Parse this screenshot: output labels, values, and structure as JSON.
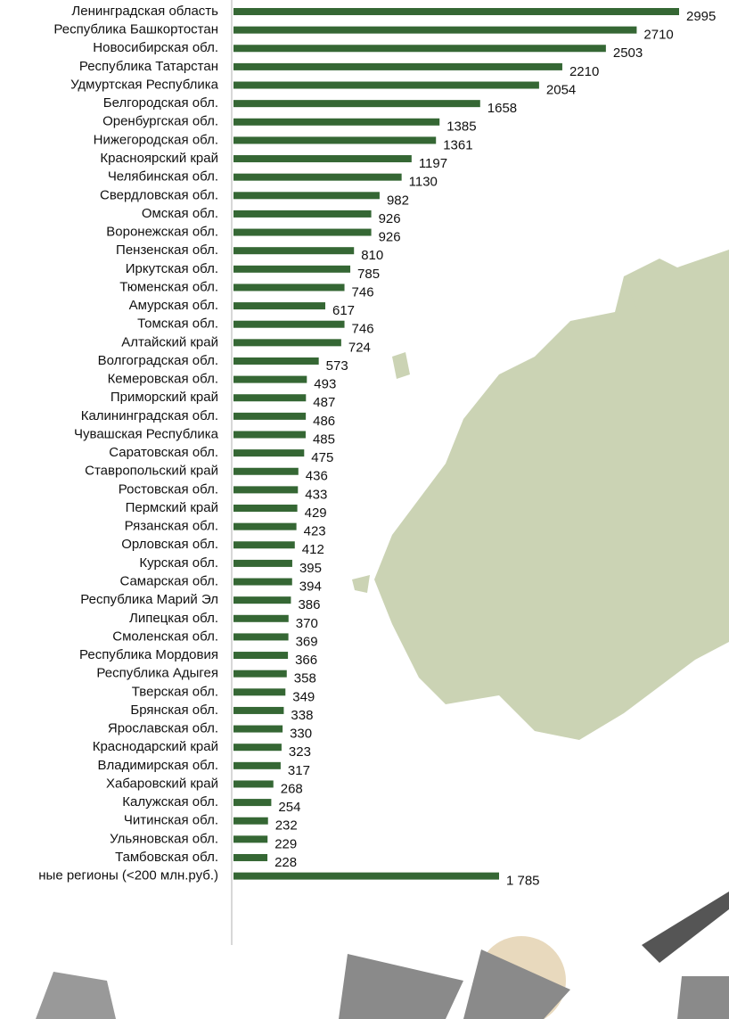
{
  "chart_data": {
    "type": "bar",
    "orientation": "horizontal",
    "color": "#356734",
    "categories": [
      "Ленинградская область",
      "Республика Башкортостан",
      "Новосибирская обл.",
      "Республика Татарстан",
      "Удмуртская Республика",
      "Белгородская обл.",
      "Оренбургская обл.",
      "Нижегородская обл.",
      "Красноярский край",
      "Челябинская обл.",
      "Свердловская обл.",
      "Омская обл.",
      "Воронежская обл.",
      "Пензенская обл.",
      "Иркутская обл.",
      "Тюменская обл.",
      "Амурская обл.",
      "Томская обл.",
      "Алтайский край",
      "Волгоградская обл.",
      "Кемеровская обл.",
      "Приморский край",
      "Калининградская обл.",
      "Чувашская Республика",
      "Саратовская обл.",
      "Ставропольский край",
      "Ростовская обл.",
      "Пермский край",
      "Рязанская обл.",
      "Орловская обл.",
      "Курская обл.",
      "Самарская обл.",
      "Республика Марий Эл",
      "Липецкая обл.",
      "Смоленская обл.",
      "Республика Мордовия",
      "Республика Адыгея",
      "Тверская обл.",
      "Брянская обл.",
      "Ярославская обл.",
      "Краснодарский край",
      "Владимирская обл.",
      "Хабаровский край",
      "Калужская обл.",
      "Читинская обл.",
      "Ульяновская обл.",
      "Тамбовская обл.",
      "ные регионы (<200 млн.руб.)"
    ],
    "values": [
      2995,
      2710,
      2503,
      2210,
      2054,
      1658,
      1385,
      1361,
      1197,
      1130,
      982,
      926,
      926,
      810,
      785,
      746,
      617,
      746,
      724,
      573,
      493,
      487,
      486,
      485,
      475,
      436,
      433,
      429,
      423,
      412,
      395,
      394,
      386,
      370,
      369,
      366,
      358,
      349,
      338,
      330,
      323,
      317,
      268,
      254,
      232,
      229,
      228,
      1785
    ],
    "value_labels": [
      "2995",
      "2710",
      "2503",
      "2210",
      "2054",
      "1658",
      "1385",
      "1361",
      "1197",
      "1130",
      "982",
      "926",
      "926",
      "810",
      "785",
      "746",
      "617",
      "746",
      "724",
      "573",
      "493",
      "487",
      "486",
      "485",
      "475",
      "436",
      "433",
      "429",
      "423",
      "412",
      "395",
      "394",
      "386",
      "370",
      "369",
      "366",
      "358",
      "349",
      "338",
      "330",
      "323",
      "317",
      "268",
      "254",
      "232",
      "229",
      "228",
      "1 785"
    ]
  }
}
